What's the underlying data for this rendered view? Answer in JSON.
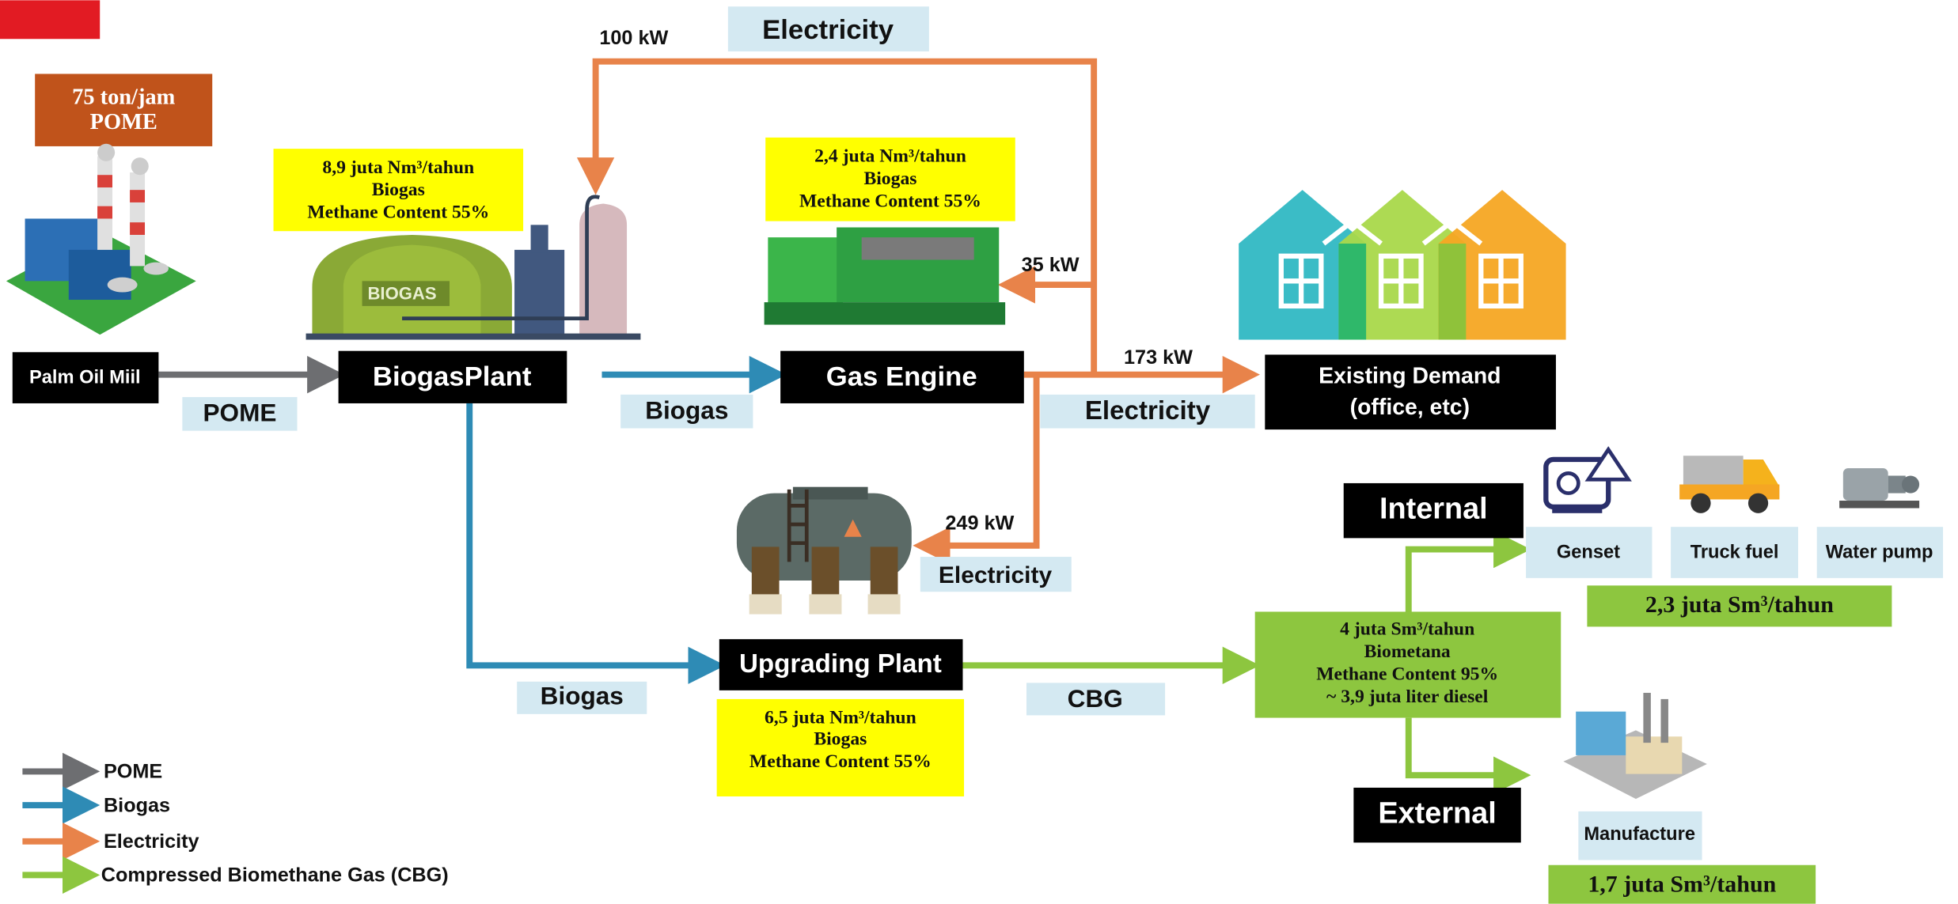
{
  "source": {
    "capacity": [
      "75 ton/jam",
      "POME"
    ],
    "label": "Palm Oil Miil"
  },
  "biogas_plant": {
    "label": "BiogasPlant",
    "tank_label": "BIOGAS",
    "info": [
      "8,9 juta Nm³/tahun",
      "Biogas",
      "Methane Content 55%"
    ]
  },
  "gas_engine": {
    "label": "Gas Engine",
    "info": [
      "2,4 juta Nm³/tahun",
      "Biogas",
      "Methane Content 55%"
    ]
  },
  "existing_demand": {
    "label": [
      "Existing Demand",
      "(office, etc)"
    ]
  },
  "upgrading_plant": {
    "label": "Upgrading Plant",
    "info": [
      "6,5 juta Nm³/tahun",
      "Biogas",
      "Methane Content 55%"
    ]
  },
  "flows": {
    "pome": "POME",
    "biogas_to_engine": "Biogas",
    "biogas_to_upgrading": "Biogas",
    "electricity_top": "Electricity",
    "electricity_demand": "Electricity",
    "electricity_upgrading": "Electricity",
    "cbg": "CBG",
    "kw_100": "100 kW",
    "kw_35": "35 kW",
    "kw_173": "173 kW",
    "kw_249": "249 kW"
  },
  "cbg_output": {
    "info": [
      "4 juta Sm³/tahun",
      "Biometana",
      "Methane Content 95%",
      "~ 3,9 juta liter diesel"
    ]
  },
  "internal": {
    "label": "Internal",
    "uses": [
      "Genset",
      "Truck fuel",
      "Water pump"
    ],
    "volume": "2,3 juta Sm³/tahun"
  },
  "external": {
    "label": "External",
    "uses": [
      "Manufacture"
    ],
    "volume": "1,7 juta Sm³/tahun"
  },
  "legend": [
    "POME",
    "Biogas",
    "Electricity",
    "Compressed Biomethane Gas (CBG)"
  ]
}
